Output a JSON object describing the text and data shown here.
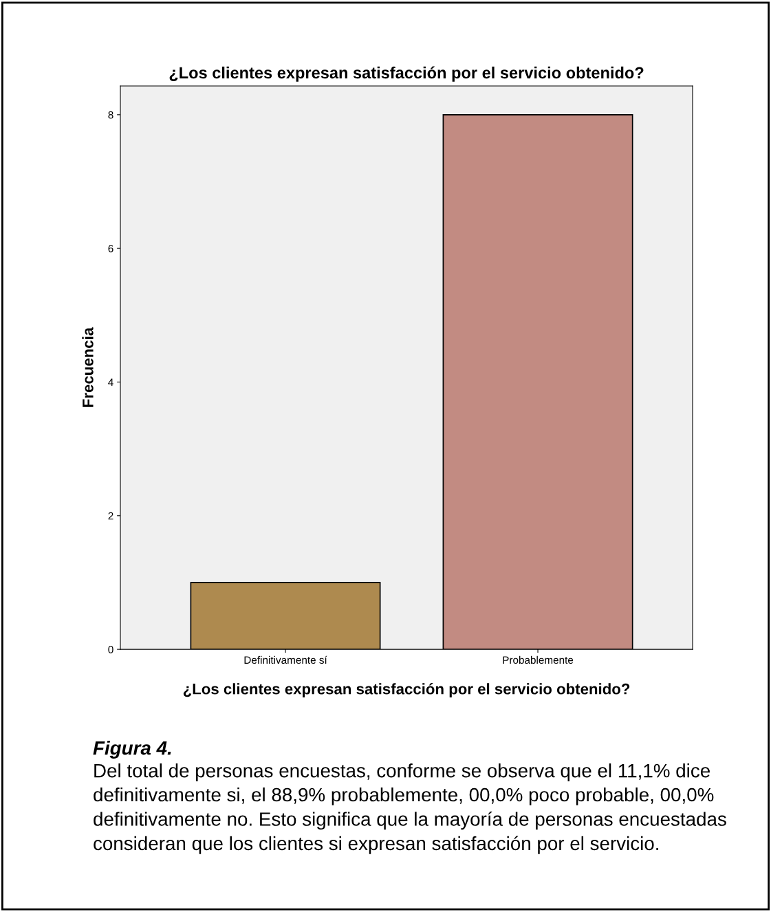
{
  "chart_data": {
    "type": "bar",
    "title": "¿Los clientes expresan satisfacción por el servicio obtenido?",
    "xlabel": "¿Los clientes expresan satisfacción por el servicio obtenido?",
    "ylabel": "Frecuencia",
    "categories": [
      "Definitivamente sí",
      "Probablemente"
    ],
    "values": [
      1,
      8
    ],
    "colors": [
      "#ae8a4f",
      "#c28b82"
    ],
    "ylim": [
      0,
      8.43
    ],
    "yticks": [
      0,
      2,
      4,
      6,
      8
    ],
    "grid": false,
    "legend": false,
    "annotations": [
      "Figura 4.",
      "Del total de personas encuestas, conforme se observa que el 11,1% dice definitivamente si, el 88,9% probablemente, 00,0% poco probable, 00,0% definitivamente no. Esto significa que la mayoría de personas encuestadas consideran que los clientes si expresan satisfacción por el servicio."
    ]
  }
}
